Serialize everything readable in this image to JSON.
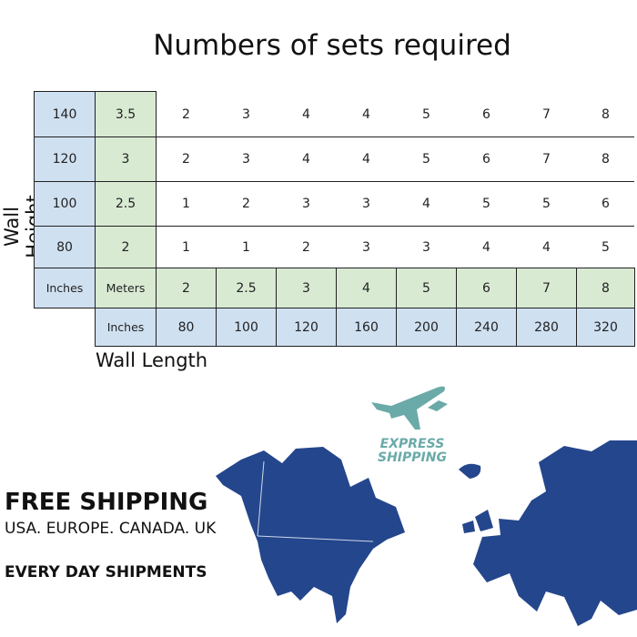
{
  "title": "Numbers of sets required",
  "y_axis_label": "Wall Height",
  "x_axis_label": "Wall Length",
  "table": {
    "height_inches": [
      "140",
      "120",
      "100",
      "80"
    ],
    "height_meters": [
      "3.5",
      "3",
      "2.5",
      "2"
    ],
    "rows": [
      [
        "2",
        "3",
        "4",
        "4",
        "5",
        "6",
        "7",
        "8"
      ],
      [
        "2",
        "3",
        "4",
        "4",
        "5",
        "6",
        "7",
        "8"
      ],
      [
        "1",
        "2",
        "3",
        "3",
        "4",
        "5",
        "5",
        "6"
      ],
      [
        "1",
        "1",
        "2",
        "3",
        "3",
        "4",
        "4",
        "5"
      ]
    ],
    "inches_label": "Inches",
    "meters_label": "Meters",
    "length_meters": [
      "2",
      "2.5",
      "3",
      "4",
      "5",
      "6",
      "7",
      "8"
    ],
    "length_inches": [
      "80",
      "100",
      "120",
      "160",
      "200",
      "240",
      "280",
      "320"
    ]
  },
  "express": {
    "line1": "EXPRESS",
    "line2": "SHIPPING"
  },
  "shipping": {
    "headline": "FREE SHIPPING",
    "regions": "USA. EUROPE. CANADA. UK",
    "everyday": "EVERY DAY SHIPMENTS"
  },
  "colors": {
    "blue_cell": "#cfe0f1",
    "green_cell": "#d9ead3",
    "map": "#24468c",
    "plane": "#6aaaa8"
  }
}
